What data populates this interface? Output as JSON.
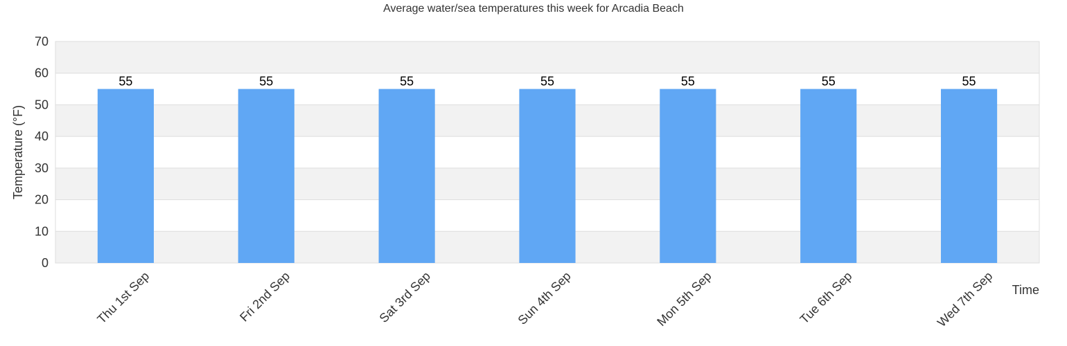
{
  "colors": {
    "bar": "#60A7F4",
    "band": "#F2F2F2",
    "gridline": "#DDDDDD",
    "plot_border": "#DDDDDD",
    "text": "#333333",
    "value_label": "#000000"
  },
  "chart_data": {
    "type": "bar",
    "title": "Average water/sea temperatures this week for Arcadia Beach",
    "xlabel": "Time",
    "ylabel": "Temperature (°F)",
    "ylim": [
      0,
      70
    ],
    "yticks": [
      0,
      10,
      20,
      30,
      40,
      50,
      60,
      70
    ],
    "categories": [
      "Thu 1st Sep",
      "Fri 2nd Sep",
      "Sat 3rd Sep",
      "Sun 4th Sep",
      "Mon 5th Sep",
      "Tue 6th Sep",
      "Wed 7th Sep"
    ],
    "values": [
      55,
      55,
      55,
      55,
      55,
      55,
      55
    ],
    "data_labels": [
      "55",
      "55",
      "55",
      "55",
      "55",
      "55",
      "55"
    ],
    "grid": true,
    "legend": "none"
  }
}
